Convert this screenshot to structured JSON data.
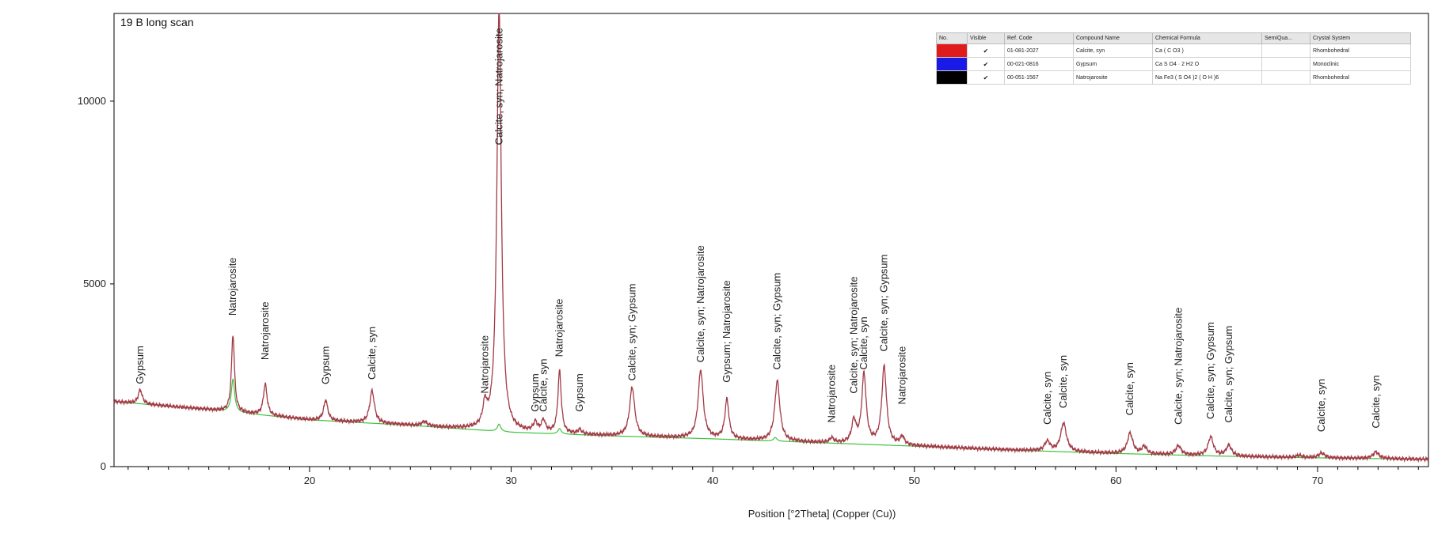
{
  "chart_data": {
    "type": "line",
    "title": "19 B long scan",
    "xlabel": "Position [°2Theta] (Copper (Cu))",
    "ylabel": "",
    "xlim": [
      10.3,
      75.5
    ],
    "ylim": [
      0,
      12400
    ],
    "x_ticks": [
      20,
      30,
      40,
      50,
      60,
      70
    ],
    "y_ticks": [
      0,
      5000,
      10000
    ],
    "x_minor_step": 1,
    "grid": false,
    "pattern_color": "#a23a45",
    "background_color": "#3fc23f",
    "background": [
      [
        10.3,
        1780
      ],
      [
        15,
        1560
      ],
      [
        20,
        1280
      ],
      [
        25,
        1130
      ],
      [
        30,
        940
      ],
      [
        35,
        840
      ],
      [
        40,
        760
      ],
      [
        45,
        660
      ],
      [
        50,
        560
      ],
      [
        55,
        450
      ],
      [
        60,
        360
      ],
      [
        65,
        290
      ],
      [
        70,
        240
      ],
      [
        75.5,
        200
      ]
    ],
    "background_peaks": [
      {
        "x": 16.2,
        "height": 900,
        "width": 0.1
      },
      {
        "x": 29.4,
        "height": 200,
        "width": 0.1
      },
      {
        "x": 32.4,
        "height": 150,
        "width": 0.1
      },
      {
        "x": 43.1,
        "height": 100,
        "width": 0.1
      }
    ],
    "peaks": [
      {
        "x": 11.6,
        "height": 380,
        "width": 0.12
      },
      {
        "x": 16.2,
        "height": 2100,
        "width": 0.09
      },
      {
        "x": 17.8,
        "height": 850,
        "width": 0.11
      },
      {
        "x": 20.8,
        "height": 560,
        "width": 0.12
      },
      {
        "x": 23.1,
        "height": 880,
        "width": 0.14
      },
      {
        "x": 25.7,
        "height": 120,
        "width": 0.15
      },
      {
        "x": 28.7,
        "height": 580,
        "width": 0.12
      },
      {
        "x": 29.4,
        "height": 11600,
        "width": 0.13
      },
      {
        "x": 31.2,
        "height": 250,
        "width": 0.12
      },
      {
        "x": 31.6,
        "height": 320,
        "width": 0.12
      },
      {
        "x": 32.4,
        "height": 1700,
        "width": 0.1
      },
      {
        "x": 33.4,
        "height": 120,
        "width": 0.12
      },
      {
        "x": 36.0,
        "height": 1340,
        "width": 0.15
      },
      {
        "x": 39.4,
        "height": 1860,
        "width": 0.15
      },
      {
        "x": 40.7,
        "height": 1080,
        "width": 0.12
      },
      {
        "x": 43.2,
        "height": 1640,
        "width": 0.15
      },
      {
        "x": 45.9,
        "height": 130,
        "width": 0.12
      },
      {
        "x": 47.0,
        "height": 600,
        "width": 0.13
      },
      {
        "x": 47.5,
        "height": 1900,
        "width": 0.13
      },
      {
        "x": 48.5,
        "height": 2130,
        "width": 0.14
      },
      {
        "x": 49.4,
        "height": 230,
        "width": 0.12
      },
      {
        "x": 56.6,
        "height": 260,
        "width": 0.16
      },
      {
        "x": 57.4,
        "height": 780,
        "width": 0.17
      },
      {
        "x": 60.7,
        "height": 560,
        "width": 0.16
      },
      {
        "x": 61.4,
        "height": 200,
        "width": 0.15
      },
      {
        "x": 63.1,
        "height": 250,
        "width": 0.16
      },
      {
        "x": 64.7,
        "height": 510,
        "width": 0.16
      },
      {
        "x": 65.6,
        "height": 290,
        "width": 0.16
      },
      {
        "x": 69.1,
        "height": 60,
        "width": 0.17
      },
      {
        "x": 70.2,
        "height": 130,
        "width": 0.18
      },
      {
        "x": 72.9,
        "height": 180,
        "width": 0.18
      }
    ],
    "peak_labels": [
      {
        "text": "Gypsum",
        "x": 11.6,
        "anchor_y": 2260
      },
      {
        "text": "Natrojarosite",
        "x": 16.2,
        "anchor_y": 4130
      },
      {
        "text": "Natrojarosite",
        "x": 17.8,
        "anchor_y": 2920
      },
      {
        "text": "Gypsum",
        "x": 20.8,
        "anchor_y": 2250
      },
      {
        "text": "Calcite, syn",
        "x": 23.1,
        "anchor_y": 2380
      },
      {
        "text": "Natrojarosite",
        "x": 28.7,
        "anchor_y": 2000
      },
      {
        "text": "Calcite, syn; Natrojarosite",
        "x": 29.4,
        "anchor_y": 8800
      },
      {
        "text": "Gypsum",
        "x": 31.2,
        "anchor_y": 1500
      },
      {
        "text": "Calcite, syn",
        "x": 31.6,
        "anchor_y": 1500
      },
      {
        "text": "Natrojarosite",
        "x": 32.4,
        "anchor_y": 3000
      },
      {
        "text": "Gypsum",
        "x": 33.4,
        "anchor_y": 1500
      },
      {
        "text": "Calcite, syn; Gypsum",
        "x": 36.0,
        "anchor_y": 2350
      },
      {
        "text": "Calcite, syn; Natrojarosite",
        "x": 39.4,
        "anchor_y": 2850
      },
      {
        "text": "Gypsum; Natrojarosite",
        "x": 40.7,
        "anchor_y": 2300
      },
      {
        "text": "Calcite, syn; Gypsum",
        "x": 43.2,
        "anchor_y": 2650
      },
      {
        "text": "Natrojarosite",
        "x": 45.9,
        "anchor_y": 1200
      },
      {
        "text": "Calcite, syn; Natrojarosite",
        "x": 47.0,
        "anchor_y": 2000
      },
      {
        "text": "Calcite, syn",
        "x": 47.5,
        "anchor_y": 2650
      },
      {
        "text": "Calcite, syn; Gypsum",
        "x": 48.5,
        "anchor_y": 3150
      },
      {
        "text": "Natrojarosite",
        "x": 49.4,
        "anchor_y": 1700
      },
      {
        "text": "Calcite, syn",
        "x": 56.6,
        "anchor_y": 1150
      },
      {
        "text": "Calcite, syn",
        "x": 57.4,
        "anchor_y": 1600
      },
      {
        "text": "Calcite, syn",
        "x": 60.7,
        "anchor_y": 1400
      },
      {
        "text": "Calcite, syn; Natrojarosite",
        "x": 63.1,
        "anchor_y": 1150
      },
      {
        "text": "Calcite, syn; Gypsum",
        "x": 64.7,
        "anchor_y": 1300
      },
      {
        "text": "Calcite, syn; Gypsum",
        "x": 65.6,
        "anchor_y": 1200
      },
      {
        "text": "Calcite, syn",
        "x": 70.2,
        "anchor_y": 950
      },
      {
        "text": "Calcite, syn",
        "x": 72.9,
        "anchor_y": 1050
      }
    ]
  },
  "legend": {
    "headers": [
      "No.",
      "Visible",
      "Ref. Code",
      "Compound Name",
      "Chemical Formula",
      "SemiQua...",
      "Crystal System"
    ],
    "rows": [
      {
        "color": "#e01b1b",
        "visible": "✔",
        "ref_code": "01-081-2027",
        "compound": "Calcite, syn",
        "formula": "Ca ( C O3 )",
        "semi": "",
        "crystal": "Rhombohedral"
      },
      {
        "color": "#1a1ae6",
        "visible": "✔",
        "ref_code": "00-021-0816",
        "compound": "Gypsum",
        "formula": "Ca S O4 · 2 H2 O",
        "semi": "",
        "crystal": "Monoclinic"
      },
      {
        "color": "#000000",
        "visible": "✔",
        "ref_code": "00-051-1567",
        "compound": "Natrojarosite",
        "formula": "Na Fe3 ( S O4 )2 ( O H )6",
        "semi": "",
        "crystal": "Rhombohedral"
      }
    ]
  }
}
